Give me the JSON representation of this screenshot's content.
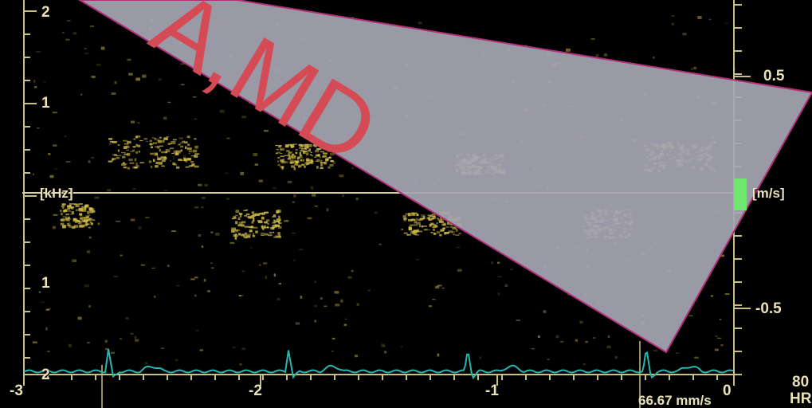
{
  "doppler": {
    "freq_axis_unit": "[kHz]",
    "velocity_axis_unit": "[m/s]",
    "freq_ticks_top": [
      "2",
      "1"
    ],
    "freq_ticks_bottom": [
      "1",
      "2"
    ],
    "velocity_ticks": [
      "0.5",
      "-0.5"
    ],
    "time_ticks": [
      "-3",
      "-2",
      "-1",
      "0"
    ],
    "sweep_speed": "66.67 mm/s",
    "hr_value": "80",
    "hr_label": "HR"
  },
  "watermark": {
    "text": "A,MD",
    "colors": {
      "overlay": "#a6a6b3",
      "border": "#b0307a",
      "text": "#d44a55"
    }
  },
  "colors": {
    "ecg_trace": "#26b8b0",
    "baseline": "#d8d2a0",
    "axis": "#c8c080",
    "spectrum": "#d6c14a",
    "marker": "#6fe86f"
  }
}
